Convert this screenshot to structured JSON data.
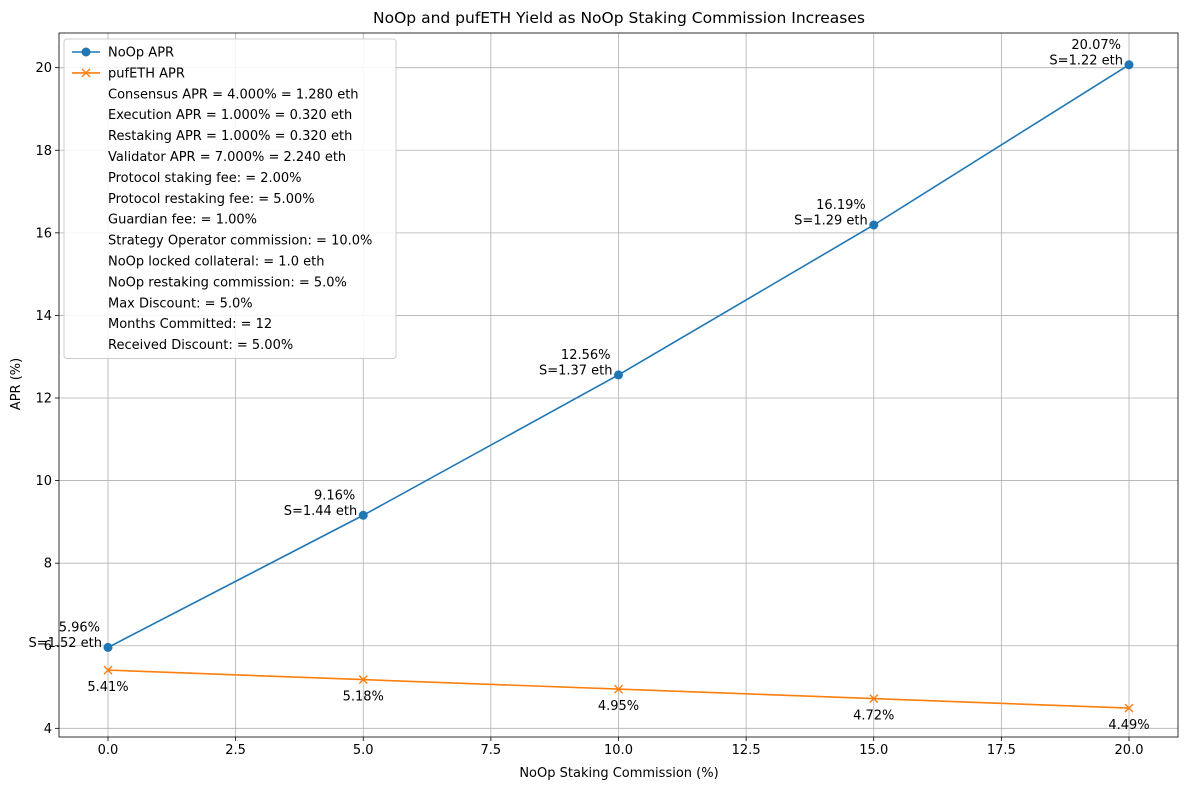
{
  "chart_data": {
    "type": "line",
    "title": "NoOp and pufETH Yield as NoOp Staking Commission Increases",
    "xlabel": "NoOp Staking Commission (%)",
    "ylabel": "APR (%)",
    "xlim": [
      -0.96,
      20.96
    ],
    "ylim": [
      3.79,
      20.84
    ],
    "xticks": [
      "0.0",
      "2.5",
      "5.0",
      "7.5",
      "10.0",
      "12.5",
      "15.0",
      "17.5",
      "20.0"
    ],
    "yticks": [
      "4",
      "6",
      "8",
      "10",
      "12",
      "14",
      "16",
      "18",
      "20"
    ],
    "grid": true,
    "legend_position": "top-left",
    "x": [
      0,
      5,
      10,
      15,
      20
    ],
    "series": [
      {
        "name": "NoOp APR",
        "color": "#1f77b4",
        "marker": "circle",
        "values": [
          5.96,
          9.16,
          12.56,
          16.19,
          20.07
        ],
        "labels": [
          [
            "5.96%",
            "S=1.52 eth"
          ],
          [
            "9.16%",
            "S=1.44 eth"
          ],
          [
            "12.56%",
            "S=1.37 eth"
          ],
          [
            "16.19%",
            "S=1.29 eth"
          ],
          [
            "20.07%",
            "S=1.22 eth"
          ]
        ]
      },
      {
        "name": "pufETH APR",
        "color": "#ff7f0e",
        "marker": "x",
        "values": [
          5.41,
          5.18,
          4.95,
          4.72,
          4.49
        ],
        "labels": [
          "5.41%",
          "5.18%",
          "4.95%",
          "4.72%",
          "4.49%"
        ]
      }
    ],
    "legend_extra": [
      "Consensus APR = 4.000% = 1.280 eth",
      "Execution APR = 1.000% = 0.320 eth",
      "Restaking APR = 1.000% = 0.320 eth",
      "Validator APR = 7.000% = 2.240 eth",
      "Protocol staking fee: = 2.00%",
      "Protocol restaking fee: = 5.00%",
      "Guardian fee: = 1.00%",
      "Strategy Operator commission: = 10.0%",
      "NoOp locked collateral: = 1.0 eth",
      "NoOp restaking commission: = 5.0%",
      "Max Discount: = 5.0%",
      "Months Committed: = 12",
      "Received Discount: = 5.00%"
    ]
  }
}
